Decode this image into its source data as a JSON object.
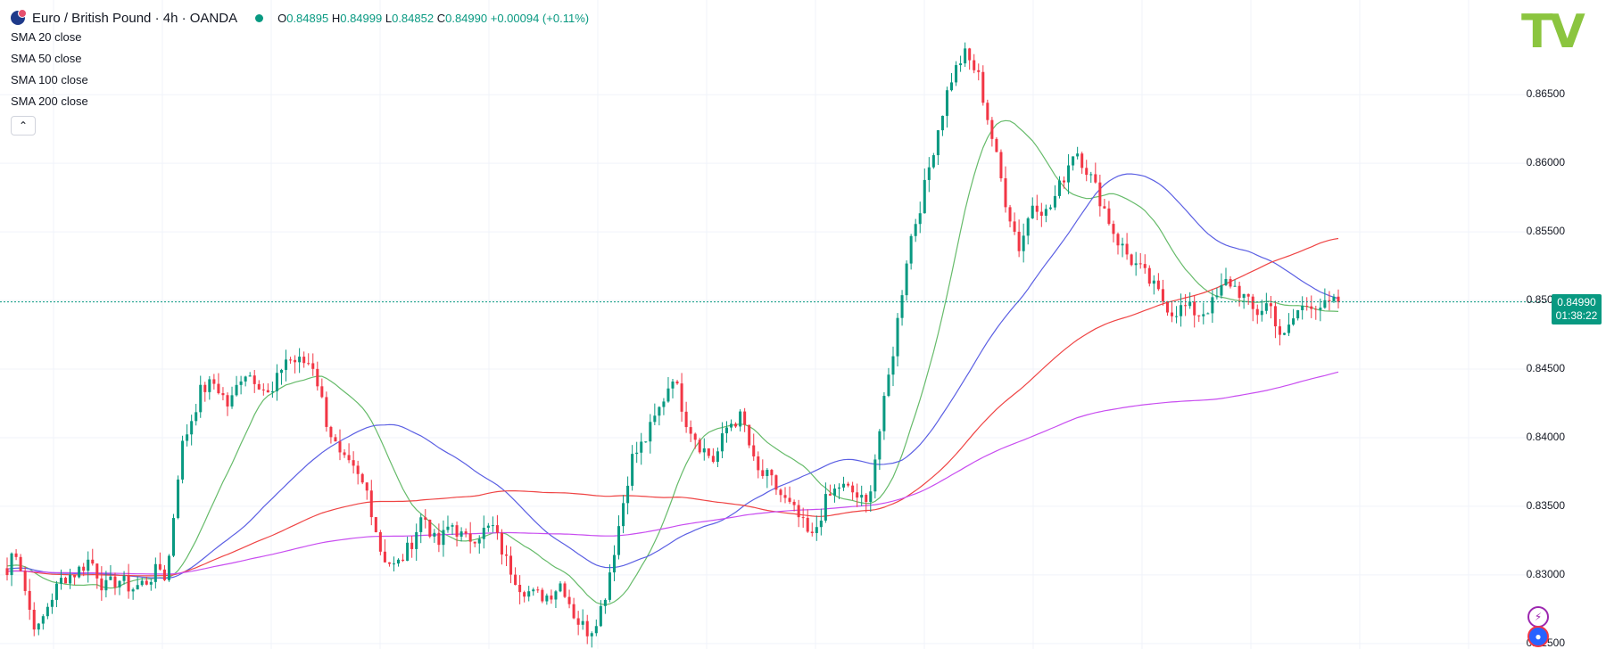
{
  "header": {
    "symbol_title": "Euro / British Pound · 4h · OANDA",
    "ohlc": {
      "o_label": "O",
      "o_value": "0.84895",
      "h_label": "H",
      "h_value": "0.84999",
      "l_label": "L",
      "l_value": "0.84852",
      "c_label": "C",
      "c_value": "0.84990",
      "change": "+0.00094 (+0.11%)"
    },
    "indicators": [
      "SMA 20 close",
      "SMA 50 close",
      "SMA 100 close",
      "SMA 200 close"
    ],
    "collapse_icon": "chevron-up-icon"
  },
  "price_tag": {
    "price": "0.84990",
    "countdown": "01:38:22",
    "color": "#089981"
  },
  "logo": {
    "text": "TV",
    "color": "#8bc53f"
  },
  "colors": {
    "up": "#089981",
    "down": "#f23645",
    "sma20": "#66bb6a",
    "sma50": "#5b5fe3",
    "sma100": "#ef4444",
    "sma200": "#c84df0"
  },
  "chart_data": {
    "type": "line",
    "subtype": "candlestick",
    "title": "Euro / British Pound · 4h · OANDA",
    "y_tick_labels": [
      "0.86500",
      "0.86000",
      "0.85500",
      "0.85000",
      "0.84500",
      "0.84000",
      "0.83500",
      "0.83000",
      "0.82500"
    ],
    "ylim": [
      0.8246,
      0.8719
    ],
    "last_price": 0.8499,
    "grid": true,
    "x_index_range": [
      0,
      296
    ],
    "anchors": {
      "idx": [
        0,
        5,
        10,
        15,
        22,
        30,
        40,
        50,
        60,
        70,
        80,
        90,
        100,
        110,
        115,
        125,
        140,
        150,
        160,
        170,
        180,
        190,
        200,
        210,
        220,
        225,
        230,
        240,
        250,
        260,
        270,
        280,
        290,
        300,
        310,
        320,
        330,
        340,
        350,
        360,
        370,
        380,
        390,
        400,
        410,
        420,
        430,
        440,
        450,
        460,
        470,
        480,
        490,
        500,
        510,
        520,
        530,
        540,
        550,
        560,
        570,
        580,
        590,
        600,
        610,
        620,
        630,
        640,
        650,
        660,
        670,
        680,
        690,
        700,
        710,
        720,
        730,
        740,
        750,
        760,
        770,
        780,
        790,
        800,
        810,
        820,
        830,
        840,
        850,
        860,
        870,
        880,
        890,
        900,
        910,
        920,
        930,
        940,
        950,
        960
      ],
      "price": [
        0.83,
        0.8323,
        0.8305,
        0.8278,
        0.8258,
        0.828,
        0.8298,
        0.8302,
        0.8312,
        0.829,
        0.8297,
        0.829,
        0.8295,
        0.8305,
        0.8297,
        0.839,
        0.8435,
        0.844,
        0.8422,
        0.8449,
        0.8443,
        0.8428,
        0.8458,
        0.8455,
        0.8455,
        0.8436,
        0.8413,
        0.8385,
        0.8375,
        0.836,
        0.8315,
        0.8305,
        0.832,
        0.8345,
        0.832,
        0.8338,
        0.8325,
        0.833,
        0.8335,
        0.831,
        0.8292,
        0.8285,
        0.8285,
        0.8295,
        0.8268,
        0.8258,
        0.828,
        0.833,
        0.8384,
        0.8398,
        0.842,
        0.8446,
        0.8412,
        0.8394,
        0.8383,
        0.841,
        0.8415,
        0.8375,
        0.837,
        0.8355,
        0.8343,
        0.8325,
        0.8353,
        0.8365,
        0.836,
        0.835,
        0.841,
        0.847,
        0.854,
        0.8575,
        0.862,
        0.866,
        0.868,
        0.8665,
        0.862,
        0.8573,
        0.8538,
        0.8573,
        0.8563,
        0.8585,
        0.8612,
        0.8593,
        0.857,
        0.8545,
        0.853,
        0.8519,
        0.8505,
        0.8492,
        0.8495,
        0.849,
        0.8498,
        0.8515,
        0.8505,
        0.849,
        0.8499,
        0.847,
        0.8492,
        0.8499,
        0.8495,
        0.8499
      ]
    },
    "candle_count": 297,
    "series": [
      {
        "name": "SMA 20 close",
        "window": 20
      },
      {
        "name": "SMA 50 close",
        "window": 50
      },
      {
        "name": "SMA 100 close",
        "window": 100
      },
      {
        "name": "SMA 200 close",
        "window": 200
      }
    ]
  }
}
